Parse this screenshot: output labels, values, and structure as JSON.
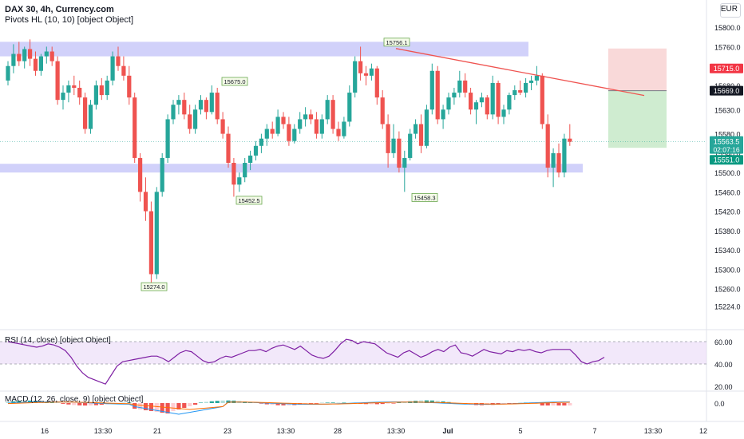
{
  "header": {
    "title": "DAX 30, 4h, Currency.com",
    "indicator": "Pivots HL (10, 10) [object Object]",
    "currency": "EUR"
  },
  "rsi": {
    "label": "RSI (14, close) [object Object]",
    "ticks": [
      "60.00",
      "40.00",
      "20.00"
    ],
    "values": [
      60,
      59,
      58,
      57,
      56,
      55,
      56,
      58,
      57,
      55,
      52,
      46,
      38,
      32,
      28,
      26,
      24,
      22,
      30,
      38,
      42,
      43,
      44,
      45,
      46,
      47,
      47,
      45,
      42,
      46,
      50,
      52,
      51,
      47,
      43,
      41,
      42,
      45,
      47,
      46,
      48,
      50,
      52,
      52,
      53,
      51,
      54,
      56,
      57,
      55,
      53,
      56,
      52,
      48,
      46,
      45,
      47,
      52,
      58,
      62,
      61,
      58,
      60,
      59,
      58,
      54,
      50,
      48,
      46,
      50,
      52,
      49,
      46,
      48,
      51,
      53,
      51,
      55,
      57,
      50,
      49,
      47,
      50,
      53,
      51,
      50,
      49,
      52,
      51,
      53,
      52,
      53,
      51,
      50,
      52,
      53,
      53,
      53,
      53,
      48,
      42,
      40,
      42,
      43,
      46
    ]
  },
  "macd": {
    "label": "MACD (12, 26, close, 9) [object Object]",
    "ticks": [
      "0.0"
    ]
  },
  "colors": {
    "up": "#26a69a",
    "down": "#ef5350",
    "zone": "#7b7bf0",
    "trendline": "#ef5350",
    "rsi_line": "#7e1fa3",
    "macd_line": "#2196f3",
    "signal_line": "#ff6d00",
    "price_badge": "#26a69a",
    "stop_badge": "#f23645",
    "entry_badge": "#131722",
    "target_badge": "#089981"
  },
  "price_axis": {
    "ticks": [
      "15800.0",
      "15760.0",
      "15715.0",
      "15680.0",
      "15630.0",
      "15580.0",
      "15540.0",
      "15500.0",
      "15460.0",
      "15420.0",
      "15380.0",
      "15340.0",
      "15300.0",
      "15260.0",
      "15224.0"
    ]
  },
  "time_axis": {
    "labels": [
      "16",
      "13:30",
      "21",
      "23",
      "13:30",
      "28",
      "13:30",
      "Jul",
      "5",
      "7",
      "13:30",
      "12"
    ]
  },
  "pivots": [
    {
      "label": "15756.1"
    },
    {
      "label": "15675.0"
    },
    {
      "label": "15452.5"
    },
    {
      "label": "15458.3"
    },
    {
      "label": "15274.0"
    }
  ],
  "badges": {
    "stop": "15715.0",
    "entry": "15669.0",
    "price": "15563.5",
    "countdown": "02:07:16",
    "target": "15551.0"
  },
  "chart_data": {
    "type": "candlestick",
    "title": "DAX 30, 4h, Currency.com",
    "ylim": [
      15210,
      15830
    ],
    "candles": [
      [
        15690,
        15730,
        15680,
        15720
      ],
      [
        15720,
        15765,
        15705,
        15745
      ],
      [
        15745,
        15770,
        15720,
        15730
      ],
      [
        15730,
        15760,
        15715,
        15755
      ],
      [
        15755,
        15775,
        15720,
        15735
      ],
      [
        15735,
        15750,
        15700,
        15710
      ],
      [
        15710,
        15745,
        15700,
        15740
      ],
      [
        15740,
        15760,
        15725,
        15750
      ],
      [
        15750,
        15760,
        15720,
        15730
      ],
      [
        15730,
        15740,
        15640,
        15650
      ],
      [
        15650,
        15680,
        15630,
        15665
      ],
      [
        15665,
        15690,
        15645,
        15680
      ],
      [
        15680,
        15700,
        15660,
        15675
      ],
      [
        15675,
        15690,
        15640,
        15655
      ],
      [
        15655,
        15665,
        15580,
        15590
      ],
      [
        15590,
        15650,
        15580,
        15640
      ],
      [
        15640,
        15690,
        15630,
        15680
      ],
      [
        15680,
        15695,
        15650,
        15660
      ],
      [
        15660,
        15700,
        15650,
        15690
      ],
      [
        15690,
        15750,
        15680,
        15740
      ],
      [
        15740,
        15760,
        15710,
        15720
      ],
      [
        15720,
        15740,
        15690,
        15700
      ],
      [
        15700,
        15720,
        15640,
        15655
      ],
      [
        15655,
        15665,
        15520,
        15530
      ],
      [
        15530,
        15540,
        15440,
        15460
      ],
      [
        15460,
        15490,
        15400,
        15420
      ],
      [
        15420,
        15440,
        15260,
        15290
      ],
      [
        15290,
        15470,
        15280,
        15460
      ],
      [
        15460,
        15540,
        15450,
        15530
      ],
      [
        15530,
        15620,
        15520,
        15610
      ],
      [
        15610,
        15650,
        15600,
        15640
      ],
      [
        15640,
        15660,
        15620,
        15650
      ],
      [
        15650,
        15665,
        15610,
        15620
      ],
      [
        15620,
        15640,
        15580,
        15590
      ],
      [
        15590,
        15640,
        15580,
        15630
      ],
      [
        15630,
        15660,
        15620,
        15650
      ],
      [
        15650,
        15655,
        15610,
        15625
      ],
      [
        15625,
        15680,
        15620,
        15665
      ],
      [
        15665,
        15675,
        15600,
        15610
      ],
      [
        15610,
        15625,
        15570,
        15580
      ],
      [
        15580,
        15595,
        15510,
        15520
      ],
      [
        15520,
        15530,
        15450,
        15475
      ],
      [
        15475,
        15500,
        15460,
        15490
      ],
      [
        15490,
        15530,
        15480,
        15520
      ],
      [
        15520,
        15545,
        15505,
        15535
      ],
      [
        15535,
        15565,
        15525,
        15555
      ],
      [
        15555,
        15580,
        15540,
        15570
      ],
      [
        15570,
        15600,
        15555,
        15590
      ],
      [
        15590,
        15605,
        15570,
        15580
      ],
      [
        15580,
        15630,
        15575,
        15615
      ],
      [
        15615,
        15625,
        15590,
        15600
      ],
      [
        15600,
        15615,
        15555,
        15565
      ],
      [
        15565,
        15600,
        15560,
        15590
      ],
      [
        15590,
        15625,
        15580,
        15610
      ],
      [
        15610,
        15635,
        15595,
        15620
      ],
      [
        15620,
        15630,
        15600,
        15610
      ],
      [
        15610,
        15625,
        15570,
        15580
      ],
      [
        15580,
        15620,
        15570,
        15610
      ],
      [
        15610,
        15660,
        15600,
        15650
      ],
      [
        15650,
        15660,
        15580,
        15590
      ],
      [
        15590,
        15605,
        15565,
        15575
      ],
      [
        15575,
        15615,
        15570,
        15605
      ],
      [
        15605,
        15680,
        15595,
        15665
      ],
      [
        15665,
        15740,
        15655,
        15730
      ],
      [
        15730,
        15760,
        15690,
        15705
      ],
      [
        15705,
        15720,
        15680,
        15700
      ],
      [
        15700,
        15725,
        15690,
        15715
      ],
      [
        15715,
        15720,
        15640,
        15655
      ],
      [
        15655,
        15670,
        15590,
        15600
      ],
      [
        15600,
        15620,
        15510,
        15540
      ],
      [
        15540,
        15600,
        15530,
        15570
      ],
      [
        15570,
        15585,
        15500,
        15510
      ],
      [
        15510,
        15545,
        15460,
        15530
      ],
      [
        15530,
        15590,
        15525,
        15580
      ],
      [
        15580,
        15610,
        15570,
        15600
      ],
      [
        15600,
        15620,
        15540,
        15555
      ],
      [
        15555,
        15640,
        15550,
        15630
      ],
      [
        15630,
        15725,
        15620,
        15710
      ],
      [
        15710,
        15720,
        15600,
        15610
      ],
      [
        15610,
        15640,
        15590,
        15630
      ],
      [
        15630,
        15665,
        15620,
        15655
      ],
      [
        15655,
        15675,
        15640,
        15665
      ],
      [
        15665,
        15710,
        15655,
        15690
      ],
      [
        15690,
        15705,
        15655,
        15665
      ],
      [
        15665,
        15675,
        15620,
        15630
      ],
      [
        15630,
        15650,
        15600,
        15645
      ],
      [
        15645,
        15665,
        15635,
        15655
      ],
      [
        15655,
        15660,
        15610,
        15620
      ],
      [
        15620,
        15700,
        15610,
        15685
      ],
      [
        15685,
        15690,
        15600,
        15615
      ],
      [
        15615,
        15640,
        15600,
        15630
      ],
      [
        15630,
        15665,
        15620,
        15660
      ],
      [
        15660,
        15680,
        15650,
        15670
      ],
      [
        15670,
        15690,
        15660,
        15665
      ],
      [
        15665,
        15695,
        15655,
        15685
      ],
      [
        15685,
        15700,
        15670,
        15690
      ],
      [
        15690,
        15720,
        15680,
        15700
      ],
      [
        15700,
        15705,
        15590,
        15600
      ],
      [
        15600,
        15620,
        15490,
        15510
      ],
      [
        15510,
        15550,
        15470,
        15540
      ],
      [
        15540,
        15560,
        15490,
        15500
      ],
      [
        15500,
        15580,
        15490,
        15570
      ],
      [
        15570,
        15600,
        15555,
        15563.5
      ]
    ],
    "zones": [
      {
        "from": 15740,
        "to": 15770
      },
      {
        "from": 15500,
        "to": 15518
      }
    ],
    "trendline": [
      [
        15756.1,
        63
      ],
      [
        15669,
        104
      ]
    ],
    "position": {
      "stop": 15715.0,
      "entry": 15669.0,
      "target": 15551.0
    },
    "current_price": 15563.5
  }
}
